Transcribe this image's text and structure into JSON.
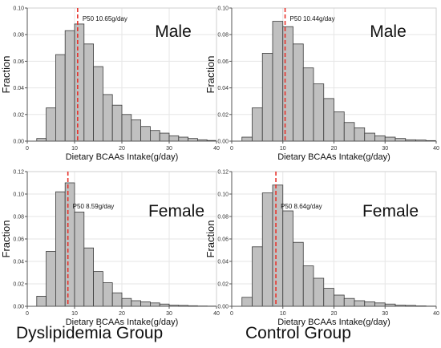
{
  "groups": {
    "left": "Dyslipidemia Group",
    "right": "Control Group"
  },
  "colors": {
    "bar_fill": "#c0c0c0",
    "bar_stroke": "#3a3a3a",
    "median_line": "#e8322b",
    "grid": "#e6e6e6",
    "axis": "#555555"
  },
  "chart_data": [
    {
      "type": "bar",
      "panel": "dyslipidemia-male",
      "sex_label": "Male",
      "xlabel": "Dietary BCAAs Intake(g/day)",
      "ylabel": "Fraction",
      "xlim": [
        0,
        40
      ],
      "ylim": [
        0,
        0.1
      ],
      "xticks": [
        "0",
        "10",
        "20",
        "30",
        "40"
      ],
      "yticks": [
        "0.00",
        "0.02",
        "0.04",
        "0.06",
        "0.08",
        "0.10"
      ],
      "grid": true,
      "bin_width": 2,
      "bin_starts": [
        2,
        4,
        6,
        8,
        10,
        12,
        14,
        16,
        18,
        20,
        22,
        24,
        26,
        28,
        30,
        32,
        34,
        36,
        38
      ],
      "values": [
        0.002,
        0.025,
        0.065,
        0.083,
        0.088,
        0.073,
        0.056,
        0.035,
        0.027,
        0.02,
        0.016,
        0.011,
        0.008,
        0.006,
        0.004,
        0.003,
        0.002,
        0.001,
        0.0005
      ],
      "median": 10.65,
      "annotation": "P50  10.65g/day"
    },
    {
      "type": "bar",
      "panel": "control-male",
      "sex_label": "Male",
      "xlabel": "Dietary BCAAs Intake(g/day)",
      "ylabel": "Fraction",
      "xlim": [
        0,
        40
      ],
      "ylim": [
        0,
        0.1
      ],
      "xticks": [
        "0",
        "10",
        "20",
        "30",
        "40"
      ],
      "yticks": [
        "0.00",
        "0.02",
        "0.04",
        "0.06",
        "0.08",
        "0.10"
      ],
      "grid": true,
      "bin_width": 2,
      "bin_starts": [
        2,
        4,
        6,
        8,
        10,
        12,
        14,
        16,
        18,
        20,
        22,
        24,
        26,
        28,
        30,
        32,
        34,
        36,
        38
      ],
      "values": [
        0.003,
        0.025,
        0.066,
        0.09,
        0.086,
        0.073,
        0.055,
        0.043,
        0.032,
        0.022,
        0.014,
        0.01,
        0.006,
        0.004,
        0.003,
        0.002,
        0.001,
        0.0008,
        0.0004
      ],
      "median": 10.44,
      "annotation": "P50  10.44g/day"
    },
    {
      "type": "bar",
      "panel": "dyslipidemia-female",
      "sex_label": "Female",
      "xlabel": "Dietary BCAAs Intake(g/day)",
      "ylabel": "Fraction",
      "xlim": [
        0,
        40
      ],
      "ylim": [
        0,
        0.12
      ],
      "xticks": [
        "0",
        "10",
        "20",
        "30",
        "40"
      ],
      "yticks": [
        "0.00",
        "0.02",
        "0.04",
        "0.06",
        "0.08",
        "0.10",
        "0.12"
      ],
      "grid": true,
      "bin_width": 2,
      "bin_starts": [
        2,
        4,
        6,
        8,
        10,
        12,
        14,
        16,
        18,
        20,
        22,
        24,
        26,
        28,
        30,
        32,
        34,
        36,
        38
      ],
      "values": [
        0.009,
        0.049,
        0.102,
        0.11,
        0.084,
        0.052,
        0.031,
        0.021,
        0.012,
        0.007,
        0.005,
        0.004,
        0.003,
        0.002,
        0.001,
        0.0008,
        0.0005,
        0.0003,
        0.0002
      ],
      "median": 8.59,
      "annotation": "P50  8.59g/day"
    },
    {
      "type": "bar",
      "panel": "control-female",
      "sex_label": "Female",
      "xlabel": "Dietary BCAAs Intake(g/day)",
      "ylabel": "Fraction",
      "xlim": [
        0,
        40
      ],
      "ylim": [
        0,
        0.12
      ],
      "xticks": [
        "0",
        "10",
        "20",
        "30",
        "40"
      ],
      "yticks": [
        "0.00",
        "0.02",
        "0.04",
        "0.06",
        "0.08",
        "0.10",
        "0.12"
      ],
      "grid": true,
      "bin_width": 2,
      "bin_starts": [
        2,
        4,
        6,
        8,
        10,
        12,
        14,
        16,
        18,
        20,
        22,
        24,
        26,
        28,
        30,
        32,
        34,
        36,
        38
      ],
      "values": [
        0.008,
        0.053,
        0.101,
        0.108,
        0.085,
        0.057,
        0.036,
        0.025,
        0.016,
        0.01,
        0.007,
        0.005,
        0.004,
        0.003,
        0.002,
        0.001,
        0.0008,
        0.0004,
        0.0002
      ],
      "median": 8.64,
      "annotation": "P50  8.64g/day"
    }
  ]
}
